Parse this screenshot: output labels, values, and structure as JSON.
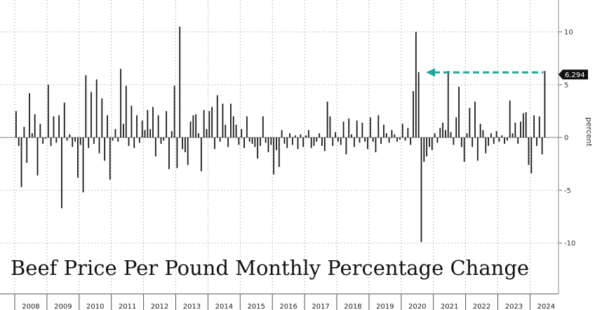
{
  "chart_data": {
    "type": "bar",
    "title": "Beef Price Per Pound Monthly Percentage Change",
    "ylabel": "percent",
    "ylim": [
      -14.5,
      13
    ],
    "yticks": [
      10,
      5,
      0,
      -5,
      -10
    ],
    "grid": true,
    "x_start": "2008-01",
    "years": [
      "2008",
      "2009",
      "2010",
      "2011",
      "2012",
      "2013",
      "2014",
      "2015",
      "2016",
      "2017",
      "2018",
      "2019",
      "2020",
      "2021",
      "2022",
      "2023",
      "2024"
    ],
    "last_value_label": "6.294",
    "accent_color": "#1fa896",
    "values": [
      2.5,
      -0.8,
      -4.7,
      1.0,
      -2.4,
      4.2,
      0.4,
      2.2,
      -3.6,
      1.3,
      -0.6,
      -0.1,
      5.0,
      -0.8,
      2.0,
      -0.5,
      2.1,
      -6.7,
      3.3,
      -0.3,
      0.3,
      -0.9,
      -0.4,
      -3.8,
      -0.7,
      -5.2,
      5.9,
      -1.0,
      4.3,
      -0.6,
      5.5,
      -1.5,
      3.7,
      -2.2,
      2.1,
      -4.0,
      -0.3,
      0.8,
      -0.4,
      6.5,
      1.3,
      4.9,
      -0.8,
      3.0,
      -1.0,
      2.1,
      -0.5,
      1.6,
      0.7,
      2.6,
      0.8,
      2.9,
      -1.8,
      2.1,
      -0.6,
      -0.3,
      2.5,
      -3.0,
      0.6,
      4.9,
      -2.9,
      10.5,
      -1.1,
      -1.4,
      -2.6,
      1.5,
      2.1,
      2.2,
      0.4,
      -3.2,
      2.6,
      0.8,
      2.5,
      2.9,
      -1.1,
      4.0,
      -0.4,
      3.2,
      1.2,
      -0.9,
      3.2,
      2.0,
      1.2,
      -0.7,
      0.8,
      -1.0,
      2.0,
      -0.4,
      -0.6,
      -0.9,
      -2.0,
      -0.8,
      2.0,
      -0.5,
      -1.4,
      -0.7,
      -3.5,
      -1.2,
      -2.8,
      0.7,
      -0.6,
      -1.0,
      0.4,
      -0.7,
      0.2,
      -1.1,
      0.3,
      -0.9,
      0.2,
      0.7,
      -1.0,
      -0.8,
      -0.4,
      0.4,
      -0.8,
      -1.3,
      3.4,
      2.0,
      -0.8,
      0.5,
      -0.4,
      -0.7,
      1.5,
      -1.6,
      1.8,
      0.3,
      -0.9,
      1.6,
      -0.5,
      1.4,
      -0.4,
      -1.1,
      1.9,
      -0.4,
      -1.4,
      2.1,
      -0.6,
      1.2,
      0.4,
      -0.5,
      0.7,
      0.3,
      -0.4,
      -0.2,
      1.3,
      -0.3,
      0.9,
      -0.7,
      4.4,
      10.0,
      6.2,
      -9.9,
      -2.3,
      -1.8,
      -0.9,
      -1.2,
      0.4,
      -0.5,
      0.9,
      1.4,
      0.7,
      6.3,
      0.5,
      -0.7,
      1.9,
      4.8,
      -0.9,
      -2.3,
      0.4,
      2.8,
      -0.9,
      3.4,
      -2.2,
      1.3,
      0.7,
      -1.5,
      -0.8,
      0.4,
      -0.6,
      0.6,
      -0.4,
      0.2,
      -0.6,
      -0.3,
      3.5,
      0.4,
      1.4,
      -0.6,
      1.5,
      2.3,
      2.4,
      -2.6,
      -3.4,
      2.1,
      -0.8,
      2.0,
      -1.6,
      6.294
    ]
  }
}
